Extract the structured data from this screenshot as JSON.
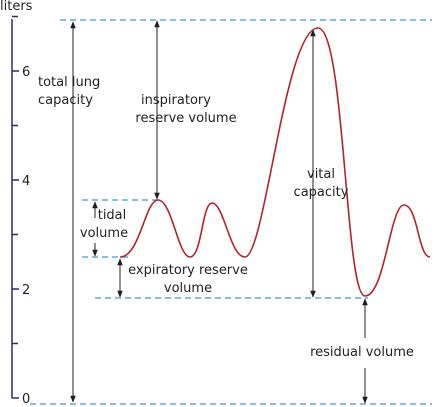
{
  "axis": {
    "label": "liters",
    "ticks": [
      0,
      2,
      4,
      6
    ]
  },
  "labels": {
    "total_lung_capacity": [
      "total lung",
      "capacity"
    ],
    "inspiratory_reserve_volume": [
      "inspiratory",
      "reserve volume"
    ],
    "tidal_volume": [
      "tidal",
      "volume"
    ],
    "expiratory_reserve_volume": [
      "expiratory reserve",
      "volume"
    ],
    "vital_capacity": [
      "vital",
      "capacity"
    ],
    "residual_volume": [
      "residual volume"
    ]
  }
}
